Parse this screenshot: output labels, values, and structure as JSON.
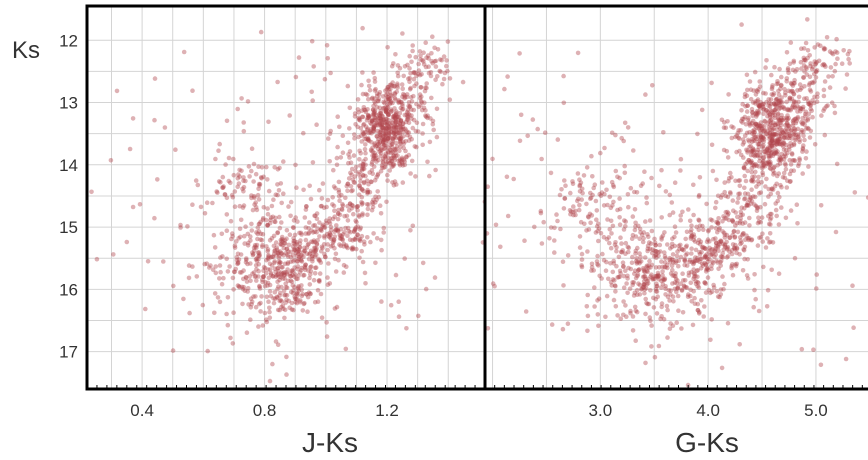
{
  "chart_data": [
    {
      "type": "scatter",
      "panel": "left",
      "xlabel": "J-Ks",
      "ylabel": "Ks",
      "xlim": [
        0.22,
        1.52
      ],
      "ylim": [
        17.6,
        11.45
      ],
      "y_inverted": true,
      "x_ticks": [
        0.4,
        0.8,
        1.2
      ],
      "x_tick_labels": [
        "0.4",
        "0.8",
        "1.2"
      ],
      "y_ticks": [
        12,
        13,
        14,
        15,
        16,
        17
      ],
      "y_tick_labels": [
        "12",
        "13",
        "14",
        "15",
        "16",
        "17"
      ],
      "x_grid": [
        0.3,
        0.4,
        0.5,
        0.6,
        0.7,
        0.8,
        0.9,
        1.0,
        1.1,
        1.2,
        1.3,
        1.4
      ],
      "y_grid": [
        12,
        12.5,
        13,
        13.5,
        14,
        14.5,
        15,
        15.5,
        16,
        16.5,
        17
      ],
      "grid": true,
      "marker_color": "#b0464d",
      "features": [
        {
          "name": "red-clump",
          "x": 1.19,
          "y": 13.4,
          "sx": 0.045,
          "sy": 0.38,
          "n": 380
        },
        {
          "name": "giant-branch",
          "from": [
            1.03,
            15.2
          ],
          "to": [
            1.35,
            12.1
          ],
          "width": 0.055,
          "n": 420
        },
        {
          "name": "lower-blob",
          "x": 0.86,
          "y": 15.7,
          "sx": 0.09,
          "sy": 0.38,
          "n": 330
        },
        {
          "name": "connector",
          "from": [
            0.92,
            15.45
          ],
          "to": [
            1.08,
            15.0
          ],
          "width": 0.06,
          "n": 120
        },
        {
          "name": "blue-sequence",
          "from": [
            0.74,
            14.0
          ],
          "to": [
            0.84,
            16.2
          ],
          "width": 0.07,
          "n": 170
        },
        {
          "name": "halo",
          "x": 0.85,
          "y": 14.7,
          "sx": 0.28,
          "sy": 1.3,
          "n": 200
        }
      ]
    },
    {
      "type": "scatter",
      "panel": "right",
      "xlabel": "G-Ks",
      "ylabel": "Ks",
      "xlim": [
        1.93,
        5.52
      ],
      "ylim": [
        17.6,
        11.45
      ],
      "y_inverted": true,
      "x_ticks": [
        3.0,
        4.0,
        5.0
      ],
      "x_tick_labels": [
        "3.0",
        "4.0",
        "5.0"
      ],
      "y_ticks": [
        12,
        13,
        14,
        15,
        16,
        17
      ],
      "y_tick_labels": [],
      "x_grid": [
        2.0,
        2.5,
        3.0,
        3.5,
        4.0,
        4.5,
        5.0,
        5.5
      ],
      "y_grid": [
        12,
        12.5,
        13,
        13.5,
        14,
        14.5,
        15,
        15.5,
        16,
        16.5,
        17
      ],
      "grid": true,
      "marker_color": "#b0464d",
      "features": [
        {
          "name": "red-clump",
          "x": 4.55,
          "y": 13.45,
          "sx": 0.16,
          "sy": 0.38,
          "n": 400
        },
        {
          "name": "giant-branch",
          "from": [
            4.2,
            15.2
          ],
          "to": [
            5.05,
            12.1
          ],
          "width": 0.17,
          "n": 430
        },
        {
          "name": "lower-blob",
          "x": 3.6,
          "y": 15.8,
          "sx": 0.3,
          "sy": 0.38,
          "n": 360
        },
        {
          "name": "connector",
          "from": [
            3.85,
            15.6
          ],
          "to": [
            4.3,
            15.1
          ],
          "width": 0.2,
          "n": 130
        },
        {
          "name": "blue-sequence",
          "from": [
            2.85,
            14.2
          ],
          "to": [
            3.3,
            16.0
          ],
          "width": 0.25,
          "n": 170
        },
        {
          "name": "halo",
          "x": 3.6,
          "y": 14.8,
          "sx": 0.95,
          "sy": 1.3,
          "n": 210
        }
      ]
    }
  ]
}
